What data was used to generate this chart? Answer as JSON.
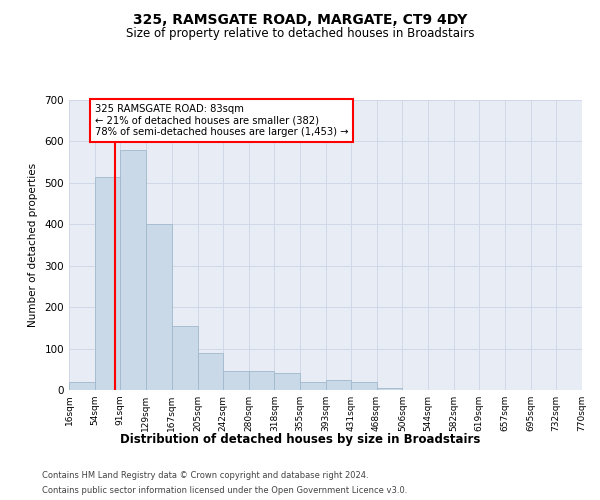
{
  "title": "325, RAMSGATE ROAD, MARGATE, CT9 4DY",
  "subtitle": "Size of property relative to detached houses in Broadstairs",
  "xlabel": "Distribution of detached houses by size in Broadstairs",
  "ylabel": "Number of detached properties",
  "bin_edges": [
    16,
    54,
    91,
    129,
    167,
    205,
    242,
    280,
    318,
    355,
    393,
    431,
    468,
    506,
    544,
    582,
    619,
    657,
    695,
    732,
    770
  ],
  "bin_labels": [
    "16sqm",
    "54sqm",
    "91sqm",
    "129sqm",
    "167sqm",
    "205sqm",
    "242sqm",
    "280sqm",
    "318sqm",
    "355sqm",
    "393sqm",
    "431sqm",
    "468sqm",
    "506sqm",
    "544sqm",
    "582sqm",
    "619sqm",
    "657sqm",
    "695sqm",
    "732sqm",
    "770sqm"
  ],
  "bar_heights": [
    20,
    515,
    580,
    400,
    155,
    90,
    45,
    45,
    40,
    20,
    25,
    20,
    5,
    0,
    0,
    0,
    0,
    0,
    0,
    0
  ],
  "bar_color": "#c9d9e8",
  "bar_edge_color": "#a0b8cc",
  "property_line_x": 83,
  "annotation_text": "325 RAMSGATE ROAD: 83sqm\n← 21% of detached houses are smaller (382)\n78% of semi-detached houses are larger (1,453) →",
  "annotation_box_color": "white",
  "annotation_border_color": "red",
  "line_color": "red",
  "ylim": [
    0,
    700
  ],
  "yticks": [
    0,
    100,
    200,
    300,
    400,
    500,
    600,
    700
  ],
  "grid_color": "#d0d8e8",
  "background_color": "#e8edf5",
  "footer1": "Contains HM Land Registry data © Crown copyright and database right 2024.",
  "footer2": "Contains public sector information licensed under the Open Government Licence v3.0."
}
